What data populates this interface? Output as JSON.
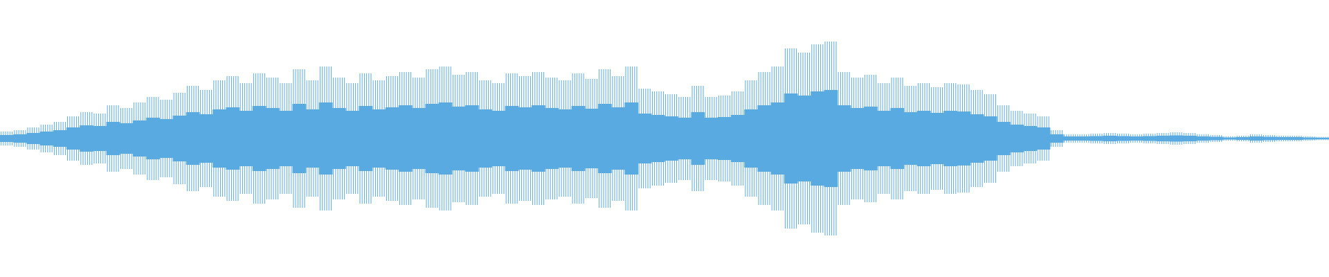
{
  "chart_data": {
    "type": "waveform",
    "color": "#5aaae2",
    "values": [
      0.05,
      0.06,
      0.08,
      0.1,
      0.12,
      0.16,
      0.19,
      0.18,
      0.24,
      0.22,
      0.26,
      0.3,
      0.28,
      0.33,
      0.38,
      0.35,
      0.42,
      0.45,
      0.4,
      0.47,
      0.44,
      0.4,
      0.5,
      0.42,
      0.52,
      0.44,
      0.4,
      0.47,
      0.42,
      0.45,
      0.48,
      0.44,
      0.5,
      0.52,
      0.46,
      0.48,
      0.42,
      0.4,
      0.47,
      0.45,
      0.48,
      0.44,
      0.42,
      0.47,
      0.43,
      0.5,
      0.45,
      0.52,
      0.36,
      0.34,
      0.32,
      0.3,
      0.38,
      0.3,
      0.31,
      0.34,
      0.42,
      0.48,
      0.52,
      0.65,
      0.62,
      0.68,
      0.7,
      0.48,
      0.44,
      0.46,
      0.4,
      0.44,
      0.38,
      0.4,
      0.37,
      0.4,
      0.39,
      0.35,
      0.32,
      0.24,
      0.2,
      0.18,
      0.16,
      0.06,
      0.03,
      0.03,
      0.035,
      0.04,
      0.035,
      0.03,
      0.035,
      0.04,
      0.045,
      0.04,
      0.03,
      0.025,
      0.015,
      0.02,
      0.03,
      0.025,
      0.02,
      0.02,
      0.015,
      0.012
    ]
  }
}
